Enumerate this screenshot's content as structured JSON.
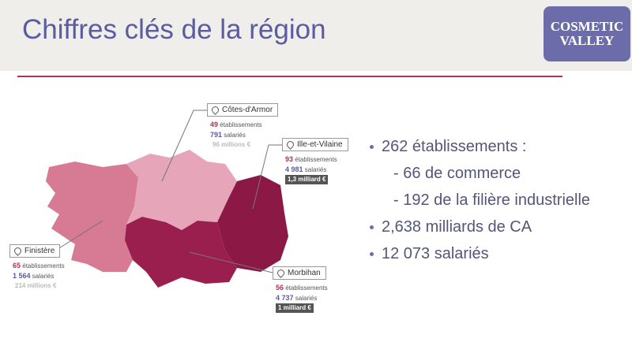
{
  "title": "Chiffres clés de la région",
  "logo": {
    "line1": "COSMETIC",
    "line2": "VALLEY"
  },
  "regions": [
    {
      "name": "Côtes-d'Armor",
      "establishments": "49",
      "establishments_label": "établissements",
      "employees": "791",
      "employees_label": "salariés",
      "revenue": "96 millions €"
    },
    {
      "name": "Ille-et-Vilaine",
      "establishments": "93",
      "establishments_label": "établissements",
      "employees": "4 981",
      "employees_label": "salariés",
      "revenue": "1,3 milliard €"
    },
    {
      "name": "Finistère",
      "establishments": "65",
      "establishments_label": "établissements",
      "employees": "1 564",
      "employees_label": "salariés",
      "revenue": "214 millions €"
    },
    {
      "name": "Morbihan",
      "establishments": "56",
      "establishments_label": "établissements",
      "employees": "4 737",
      "employees_label": "salariés",
      "revenue": "1 milliard €"
    }
  ],
  "bullets": [
    {
      "text": "262 établissements :",
      "sub": [
        "- 66 de commerce",
        "- 192 de la filière industrielle"
      ]
    },
    {
      "text": "2,638 milliards de CA"
    },
    {
      "text": "12 073 salariés"
    }
  ]
}
